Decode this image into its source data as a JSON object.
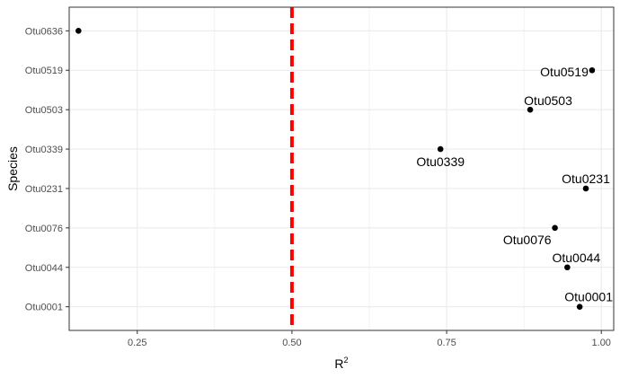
{
  "chart_data": {
    "type": "scatter",
    "xlabel": "R",
    "xlabel_superscript": "2",
    "ylabel": "Species",
    "xlim": [
      0.14,
      1.02
    ],
    "xticks": [
      0.25,
      0.5,
      0.75,
      1.0
    ],
    "xtick_labels": [
      "0.25",
      "0.50",
      "0.75",
      "1.00"
    ],
    "categories": [
      "Otu0001",
      "Otu0044",
      "Otu0076",
      "Otu0231",
      "Otu0339",
      "Otu0503",
      "Otu0519",
      "Otu0636"
    ],
    "points": [
      {
        "species": "Otu0636",
        "r2": 0.155,
        "label": null
      },
      {
        "species": "Otu0519",
        "r2": 0.985,
        "label": "Otu0519"
      },
      {
        "species": "Otu0503",
        "r2": 0.885,
        "label": "Otu0503"
      },
      {
        "species": "Otu0339",
        "r2": 0.74,
        "label": "Otu0339"
      },
      {
        "species": "Otu0231",
        "r2": 0.975,
        "label": "Otu0231"
      },
      {
        "species": "Otu0076",
        "r2": 0.925,
        "label": "Otu0076"
      },
      {
        "species": "Otu0044",
        "r2": 0.945,
        "label": "Otu0044"
      },
      {
        "species": "Otu0001",
        "r2": 0.965,
        "label": "Otu0001"
      }
    ],
    "threshold": 0.5,
    "threshold_style": "dashed",
    "grid": true,
    "legend": "none",
    "colors": {
      "point": "#000000",
      "threshold": "#ff0000",
      "grid": "#ebebeb",
      "panel_border": "#333333"
    }
  }
}
